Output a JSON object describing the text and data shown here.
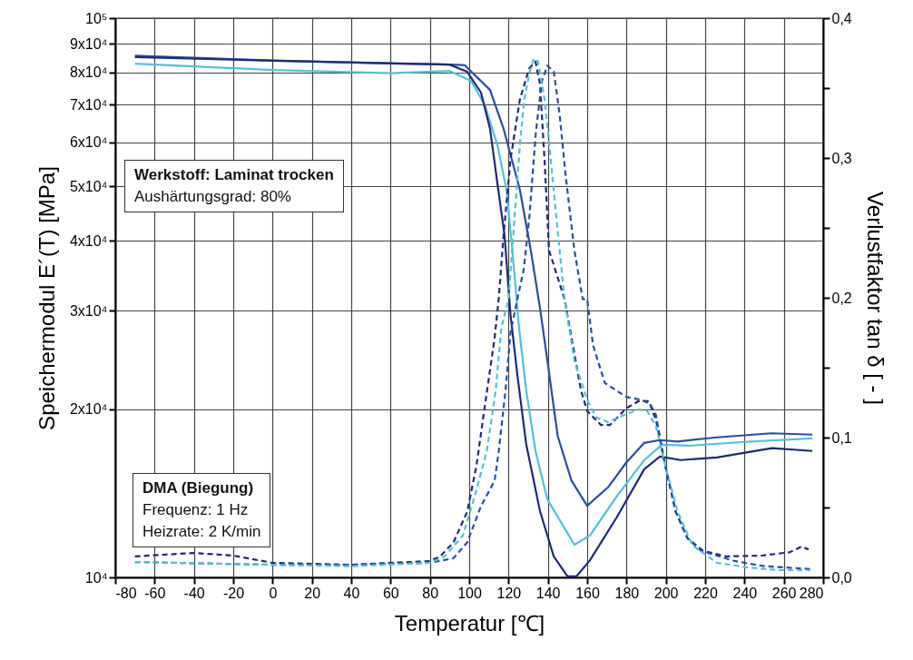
{
  "chart_data": {
    "type": "line",
    "xlabel": "Temperatur [℃]",
    "ylabel": "Speichermodul E´(T) [MPa]",
    "y2label": "Verlustfaktor tan δ [ - ]",
    "xlim": [
      -80,
      280
    ],
    "xticks": [
      -80,
      -60,
      -40,
      -20,
      0,
      20,
      40,
      60,
      80,
      100,
      120,
      140,
      160,
      180,
      200,
      220,
      240,
      260,
      280
    ],
    "ylim": [
      10000,
      100000
    ],
    "yticks": [
      {
        "value": 10000,
        "label": "10⁴"
      },
      {
        "value": 20000,
        "label": "2x10⁴"
      },
      {
        "value": 30000,
        "label": "3x10⁴"
      },
      {
        "value": 40000,
        "label": "4x10⁴"
      },
      {
        "value": 50000,
        "label": "5x10⁴"
      },
      {
        "value": 60000,
        "label": "6x10⁴"
      },
      {
        "value": 70000,
        "label": "7x10⁴"
      },
      {
        "value": 80000,
        "label": "8x10⁴"
      },
      {
        "value": 90000,
        "label": "9x10⁴"
      },
      {
        "value": 100000,
        "label": "10⁵"
      }
    ],
    "y2lim": [
      0,
      0.4
    ],
    "y2ticks": [
      {
        "value": 0,
        "label": "0,0"
      },
      {
        "value": 0.05,
        "label": null
      },
      {
        "value": 0.1,
        "label": "0,1"
      },
      {
        "value": 0.15,
        "label": null
      },
      {
        "value": 0.2,
        "label": "0,2"
      },
      {
        "value": 0.25,
        "label": null
      },
      {
        "value": 0.3,
        "label": "0,3"
      },
      {
        "value": 0.35,
        "label": null
      },
      {
        "value": 0.4,
        "label": "0,4"
      }
    ],
    "log": "y",
    "grid": true,
    "annotations": [
      "Werkstoff: Laminat trocken",
      "Aushärtungsgrad: 80%",
      "DMA (Biegung)",
      "Frequenz: 1 Hz",
      "Heizrate: 2 K/min"
    ],
    "series": [
      {
        "color": "#2a4fa6",
        "x": [
          -70,
          0,
          60,
          90,
          97.7,
          110.6,
          117.5,
          125.8,
          131.4,
          136,
          139.7,
          145,
          152,
          160,
          170.6,
          179.8,
          189,
          197,
          206,
          226,
          253.7,
          274.5
        ],
        "values": [
          85700,
          84000,
          83000,
          82600,
          82400,
          74400,
          63400,
          49300,
          38300,
          30300,
          24500,
          17900,
          14900,
          13430,
          14490,
          16030,
          17400,
          17600,
          17500,
          17800,
          18100,
          18000
        ]
      },
      {
        "color": "#4fc3d9",
        "x": [
          -70,
          0,
          60,
          90,
          101,
          108,
          114.3,
          119,
          122,
          125.4,
          129,
          133.7,
          139.7,
          153.5,
          161.4,
          175,
          189,
          198,
          212,
          240,
          274.5
        ],
        "values": [
          82900,
          80800,
          79700,
          80500,
          77200,
          69800,
          59400,
          49300,
          38300,
          27800,
          21600,
          16830,
          13800,
          11440,
          11880,
          13950,
          16210,
          17270,
          17200,
          17470,
          17730
        ]
      },
      {
        "color": "#1f2a7a",
        "x": [
          -70,
          0,
          90,
          99,
          106,
          110.6,
          114,
          118,
          121,
          124.5,
          129,
          136,
          143,
          150,
          154.5,
          161.4,
          175,
          189,
          197,
          207.5,
          226,
          254,
          274.5
        ],
        "values": [
          85200,
          83900,
          82600,
          80200,
          73600,
          63400,
          51700,
          40800,
          29500,
          23000,
          17300,
          13140,
          10900,
          10040,
          10040,
          10730,
          12800,
          15610,
          16450,
          16210,
          16390,
          17030,
          16830
        ]
      },
      {
        "axis": "y2",
        "line_style": "dashed",
        "color": "#1f2a7a",
        "x": [
          -70,
          -40,
          -20,
          0,
          40,
          80,
          85.2,
          92,
          99,
          103.7,
          108,
          112.9,
          115,
          117.5,
          121,
          125.8,
          130.5,
          133.7,
          136,
          138.3,
          140.6,
          148.5,
          156.8,
          160,
          167,
          171.5,
          180,
          186,
          191.4,
          195,
          199.7,
          205,
          211,
          219,
          230.6,
          249,
          263,
          269,
          272.6
        ],
        "values": [
          0.015,
          0.0175,
          0.0156,
          0.0104,
          0.009,
          0.0117,
          0.015,
          0.025,
          0.047,
          0.08,
          0.123,
          0.171,
          0.199,
          0.245,
          0.299,
          0.342,
          0.364,
          0.369,
          0.353,
          0.299,
          0.234,
          0.199,
          0.134,
          0.119,
          0.109,
          0.109,
          0.121,
          0.126,
          0.126,
          0.1125,
          0.08,
          0.047,
          0.028,
          0.019,
          0.015,
          0.0156,
          0.018,
          0.022,
          0.02
        ]
      },
      {
        "axis": "y2",
        "line_style": "dashed",
        "color": "#2a4fa6",
        "x": [
          -70,
          0,
          40,
          80,
          92,
          99,
          106,
          112.9,
          115,
          118.5,
          121,
          124.5,
          127.7,
          130.5,
          134,
          137,
          139.7,
          143,
          146,
          149,
          153.5,
          157.7,
          160,
          163,
          169,
          180,
          187.7,
          192,
          195,
          199.7,
          205,
          211,
          218,
          234,
          250,
          273.5
        ],
        "values": [
          0.011,
          0.009,
          0.009,
          0.0104,
          0.0137,
          0.025,
          0.051,
          0.069,
          0.09,
          0.134,
          0.175,
          0.199,
          0.22,
          0.256,
          0.32,
          0.355,
          0.366,
          0.362,
          0.331,
          0.288,
          0.234,
          0.199,
          0.199,
          0.166,
          0.139,
          0.129,
          0.127,
          0.124,
          0.116,
          0.08,
          0.047,
          0.028,
          0.019,
          0.012,
          0.008,
          0.006
        ]
      },
      {
        "axis": "y2",
        "line_style": "dashed",
        "color": "#4fc3d9",
        "x": [
          -70,
          0,
          40,
          80,
          87.5,
          96.8,
          102.8,
          108.9,
          113.5,
          116.3,
          120,
          123,
          125.8,
          128,
          130.5,
          132.8,
          135,
          138.3,
          141.5,
          144.4,
          148.5,
          153.5,
          160,
          164.6,
          170.6,
          178.5,
          186,
          190.5,
          195,
          199.7,
          206,
          213.5,
          226,
          241,
          257,
          273.5
        ],
        "values": [
          0.011,
          0.009,
          0.008,
          0.0104,
          0.015,
          0.03,
          0.058,
          0.09,
          0.134,
          0.178,
          0.199,
          0.256,
          0.31,
          0.342,
          0.36,
          0.371,
          0.369,
          0.342,
          0.299,
          0.256,
          0.199,
          0.155,
          0.127,
          0.1145,
          0.111,
          0.116,
          0.12,
          0.119,
          0.108,
          0.08,
          0.047,
          0.023,
          0.0104,
          0.0072,
          0.0052,
          0.0052
        ]
      }
    ]
  }
}
